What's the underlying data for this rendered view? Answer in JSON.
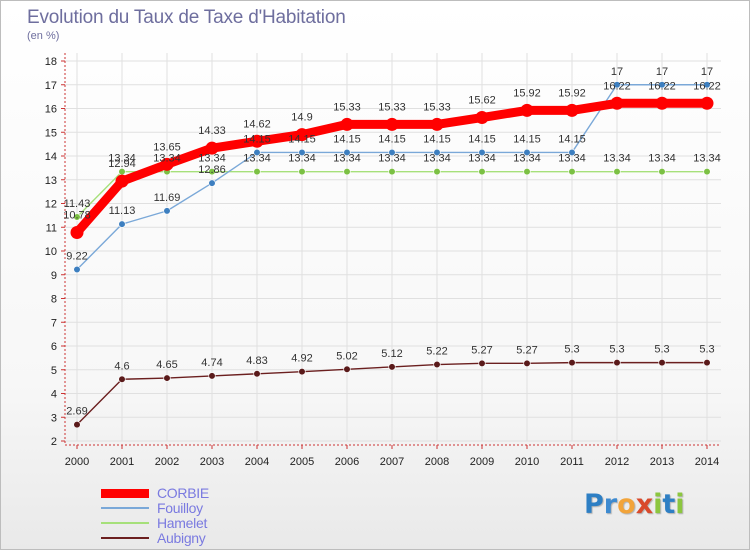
{
  "title": "Evolution du Taux de Taxe d'Habitation",
  "subtitle": "(en %)",
  "logo": {
    "text": "Proxiti",
    "letters": [
      "P",
      "r",
      "o",
      "x",
      "i",
      "t",
      "i"
    ],
    "colors": [
      "#2e7fc4",
      "#3d8ad0",
      "#f2a43a",
      "#d94a2c",
      "#8cc63f",
      "#2e7fc4",
      "#8cc63f"
    ]
  },
  "chart_data": {
    "type": "line",
    "title": "Evolution du Taux de Taxe d'Habitation",
    "ylabel": "(en %)",
    "xlabel": "",
    "ylim": [
      2,
      18
    ],
    "yticks": [
      2,
      3,
      4,
      5,
      6,
      7,
      8,
      9,
      10,
      11,
      12,
      13,
      14,
      15,
      16,
      17,
      18
    ],
    "x": [
      2000,
      2001,
      2002,
      2003,
      2004,
      2005,
      2006,
      2007,
      2008,
      2009,
      2010,
      2011,
      2012,
      2013,
      2014
    ],
    "legend_position": "bottom-left",
    "series": [
      {
        "name": "CORBIE",
        "color": "#ff0000",
        "values": [
          10.78,
          12.94,
          13.65,
          14.33,
          14.62,
          14.9,
          15.33,
          15.33,
          15.33,
          15.62,
          15.92,
          15.92,
          16.22,
          16.22,
          16.22
        ],
        "labels": [
          "10.78",
          "12.94",
          "13.65",
          "14.33",
          "14.62",
          "14.9",
          "15.33",
          "15.33",
          "15.33",
          "15.62",
          "15.92",
          "15.92",
          "16.22",
          "16.22",
          "16.22"
        ]
      },
      {
        "name": "Fouilloy",
        "color": "#6fa8dc",
        "values": [
          9.22,
          11.13,
          11.69,
          12.86,
          14.15,
          14.15,
          14.15,
          14.15,
          14.15,
          14.15,
          14.15,
          14.15,
          17,
          17,
          17
        ],
        "labels": [
          "9.22",
          "11.13",
          "11.69",
          "12.86",
          "14.15",
          "14.15",
          "14.15",
          "14.15",
          "14.15",
          "14.15",
          "14.15",
          "14.15",
          "17",
          "17",
          "17"
        ]
      },
      {
        "name": "Hamelet",
        "color": "#a6e07a",
        "values": [
          11.43,
          13.34,
          13.34,
          13.34,
          13.34,
          13.34,
          13.34,
          13.34,
          13.34,
          13.34,
          13.34,
          13.34,
          13.34,
          13.34,
          13.34
        ],
        "labels": [
          "11.43",
          "13.34",
          "13.34",
          "13.34",
          "13.34",
          "13.34",
          "13.34",
          "13.34",
          "13.34",
          "13.34",
          "13.34",
          "13.34",
          "13.34",
          "13.34",
          "13.34"
        ]
      },
      {
        "name": "Aubigny",
        "color": "#6b1f1f",
        "values": [
          2.69,
          4.6,
          4.65,
          4.74,
          4.83,
          4.92,
          5.02,
          5.12,
          5.22,
          5.27,
          5.27,
          5.3,
          5.3,
          5.3,
          5.3
        ],
        "labels": [
          "2.69",
          "4.6",
          "4.65",
          "4.74",
          "4.83",
          "4.92",
          "5.02",
          "5.12",
          "5.22",
          "5.27",
          "5.27",
          "5.3",
          "5.3",
          "5.3",
          "5.3"
        ]
      }
    ]
  }
}
